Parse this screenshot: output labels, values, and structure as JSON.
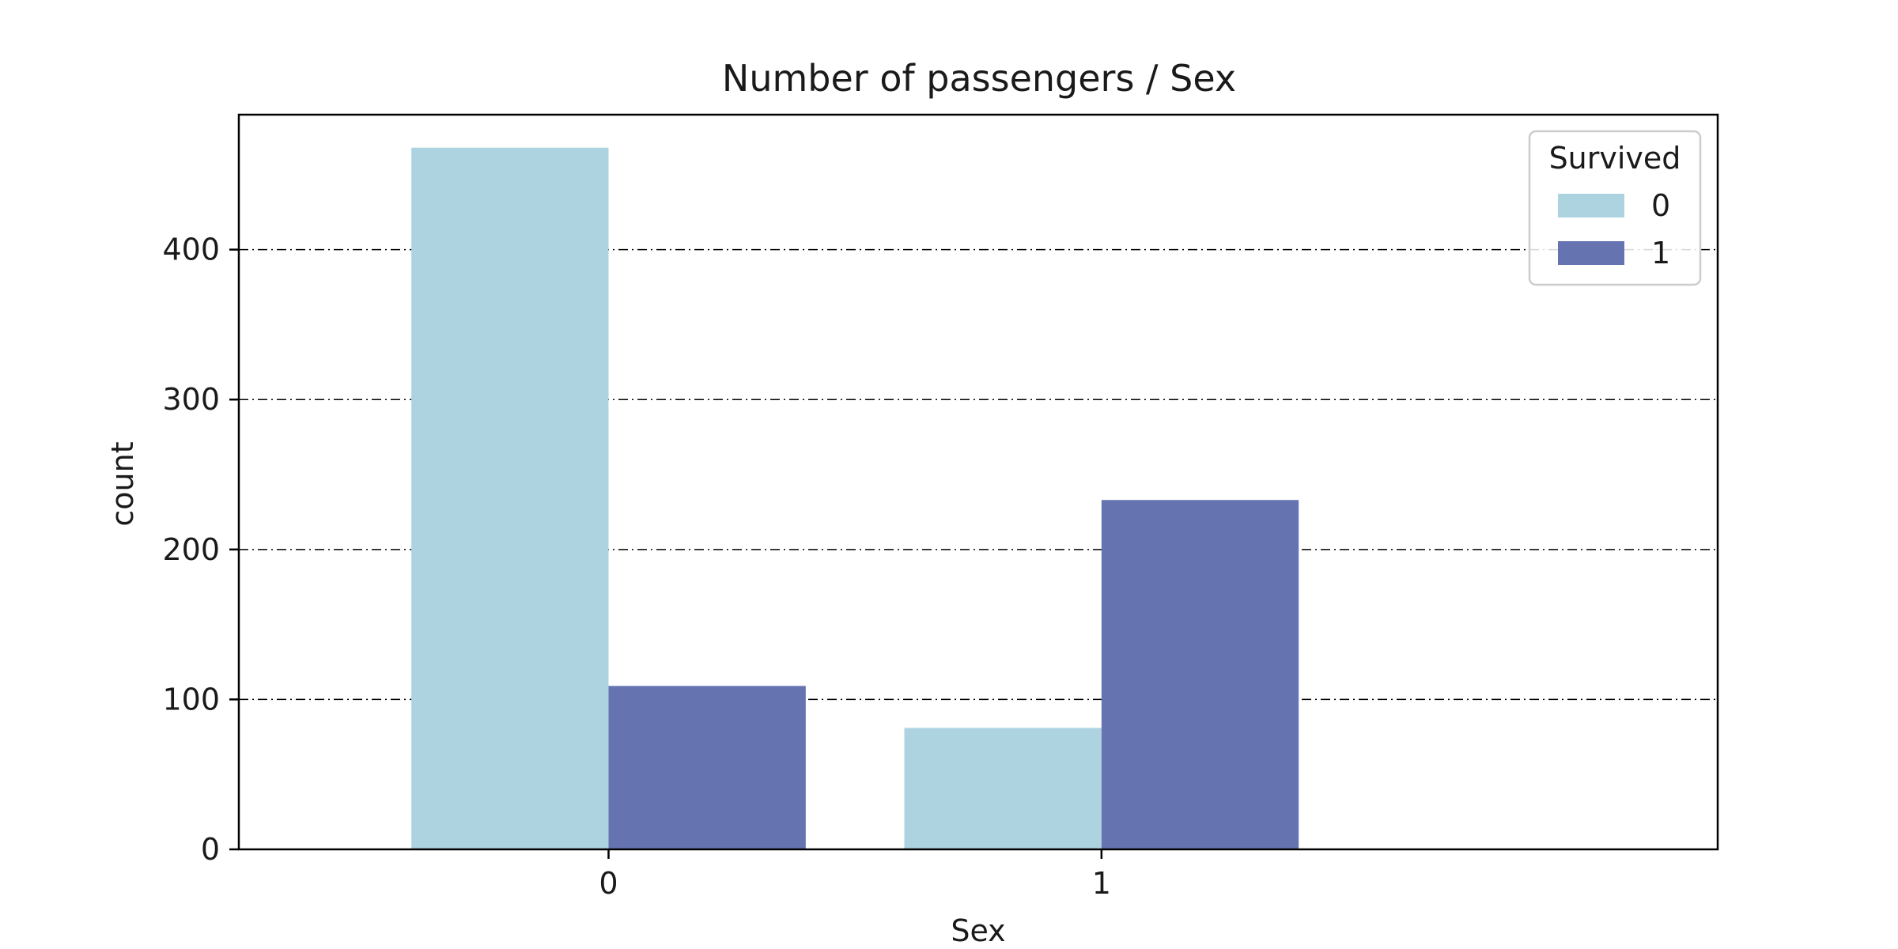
{
  "chart_data": {
    "type": "bar",
    "title": "Number of passengers / Sex",
    "xlabel": "Sex",
    "ylabel": "count",
    "categories": [
      "0",
      "1"
    ],
    "series": [
      {
        "name": "0",
        "values": [
          468,
          81
        ],
        "color": "#add3e1"
      },
      {
        "name": "1",
        "values": [
          109,
          233
        ],
        "color": "#6574b0"
      }
    ],
    "ylim": [
      0,
      490
    ],
    "yticks": [
      0,
      100,
      200,
      300,
      400
    ],
    "grid": true,
    "grid_style": "dash-dot",
    "legend": {
      "title": "Survived",
      "placement": "top-right"
    }
  }
}
